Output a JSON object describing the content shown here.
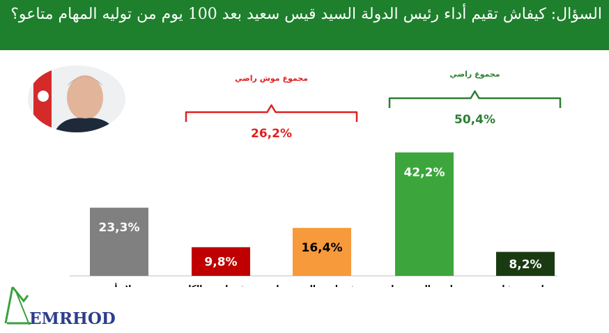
{
  "header": {
    "question": "السؤال:  كيفاش تقيم أداء رئيس الدولة السيد قيس سعيد بعد 100 يوم من توليه المهام متاعو؟"
  },
  "logo": {
    "text": "EMRHOD"
  },
  "colors": {
    "header_bg": "#1e7f2c",
    "no_opinion": "#808080",
    "not_satisfied_at_all": "#c00000",
    "not_satisfied_somewhat": "#f79a3c",
    "satisfied_somewhat": "#3ca63c",
    "very_satisfied": "#1a3a12",
    "not_satisfied_group": "#e02020",
    "satisfied_group": "#2e7d32"
  },
  "chart_data": {
    "type": "bar",
    "categories": [
      "لا رأي",
      "موش راضي بالكل",
      "موش راضي إلى حد ما",
      "راضي إلى حد ما",
      "راضي برشا"
    ],
    "values": [
      23.3,
      9.8,
      16.4,
      42.2,
      8.2
    ],
    "value_labels": [
      "23,3%",
      "9,8%",
      "16,4%",
      "42,2%",
      "8,2%"
    ],
    "bar_colors": [
      "#808080",
      "#c00000",
      "#f79a3c",
      "#3ca63c",
      "#1a3a12"
    ],
    "label_colors": [
      "#ffffff",
      "#ffffff",
      "#000000",
      "#ffffff",
      "#ffffff"
    ],
    "ylim": [
      0,
      50
    ],
    "title": "",
    "xlabel": "",
    "ylabel": "",
    "groups": [
      {
        "title": "مجموع موش راضي",
        "value_label": "26,2%",
        "value": 26.2,
        "from": 1,
        "to": 2,
        "color": "#e02020"
      },
      {
        "title": "مجموع راضي",
        "value_label": "50,4%",
        "value": 50.4,
        "from": 3,
        "to": 4,
        "color": "#2e7d32"
      }
    ]
  }
}
